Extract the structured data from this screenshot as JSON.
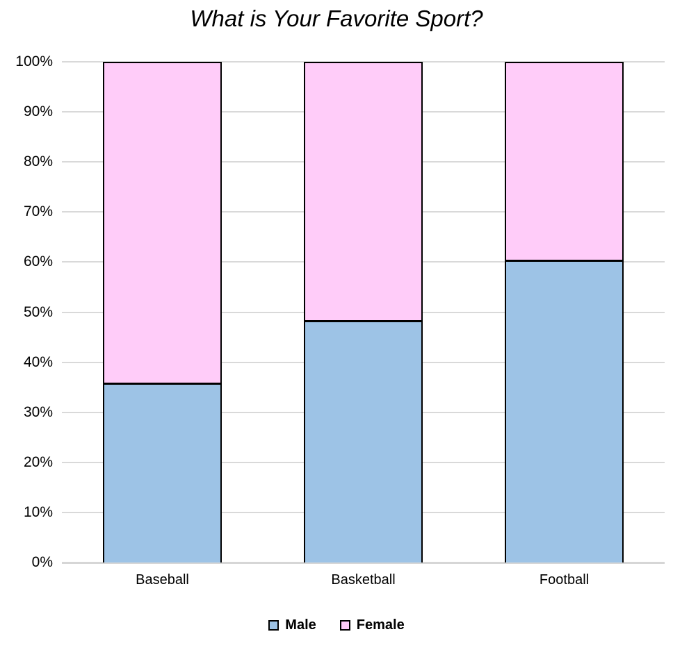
{
  "chart_data": {
    "type": "bar",
    "subtype": "stacked-100-percent-column",
    "title": "What is Your Favorite Sport?",
    "categories": [
      "Baseball",
      "Basketball",
      "Football"
    ],
    "series": [
      {
        "name": "Male",
        "color": "#9DC3E6",
        "values": [
          36,
          48.5,
          60.7
        ]
      },
      {
        "name": "Female",
        "color": "#FFCCF9",
        "values": [
          64,
          51.5,
          39.3
        ]
      }
    ],
    "value_format": "percent",
    "xlabel": "",
    "ylabel": "",
    "ylim": [
      0,
      100
    ],
    "ytick_step": 10,
    "ytick_labels": [
      "0%",
      "10%",
      "20%",
      "30%",
      "40%",
      "50%",
      "60%",
      "70%",
      "80%",
      "90%",
      "100%"
    ],
    "grid": true,
    "legend_position": "bottom",
    "colors": {
      "bar_border": "#000000",
      "gridline": "#D9D9D9",
      "axis_line": "#D6D6D6",
      "background": "#FFFFFF",
      "text": "#000000"
    }
  }
}
